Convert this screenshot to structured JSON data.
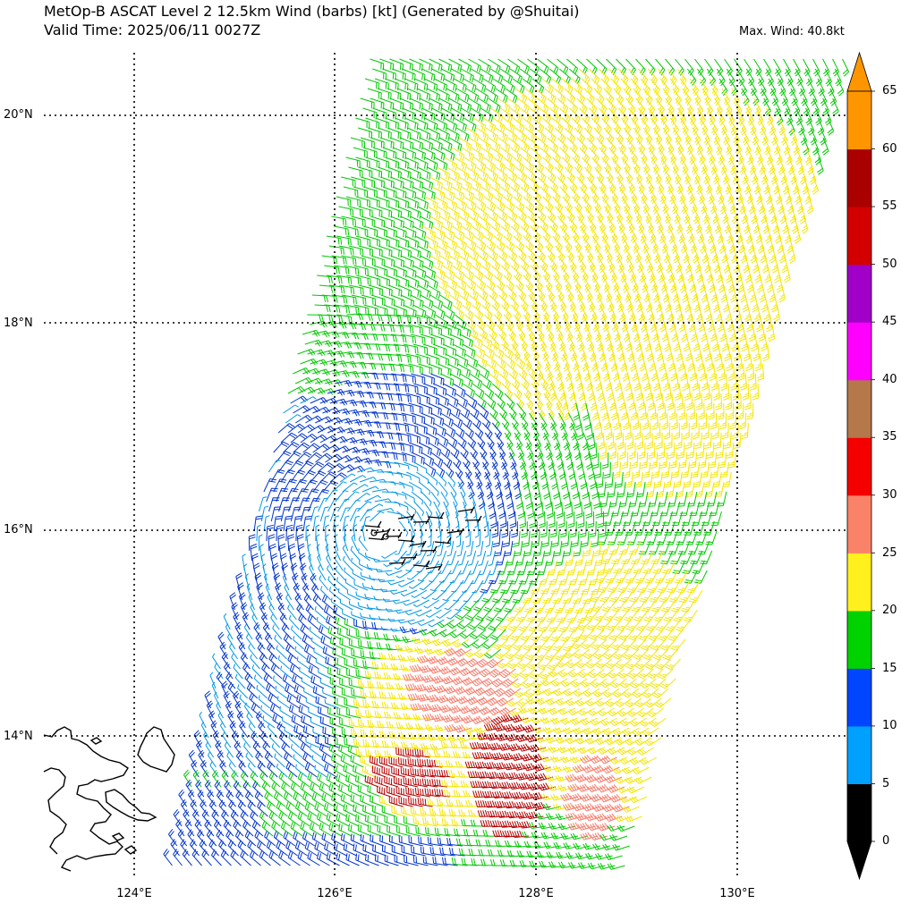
{
  "title": {
    "line1": "MetOp-B ASCAT Level 2 12.5km Wind (barbs) [kt] (Generated by @Shuitai)",
    "line2": "Valid Time: 2025/06/11 0027Z",
    "max_wind": "Max. Wind: 40.8kt"
  },
  "map": {
    "lat_labels": [
      "20°N",
      "18°N",
      "16°N",
      "14°N"
    ],
    "lon_labels": [
      "124°E",
      "126°E",
      "128°E",
      "130°E"
    ],
    "lat_range": [
      12.7,
      20.6
    ],
    "lon_range": [
      123.1,
      131.1
    ],
    "grid_style": "dotted"
  },
  "colorbar": {
    "levels": [
      "0",
      "5",
      "10",
      "15",
      "20",
      "25",
      "30",
      "35",
      "40",
      "45",
      "50",
      "55",
      "60",
      "65"
    ],
    "colors": [
      "#000000",
      "#00a0ff",
      "#0046ff",
      "#00d200",
      "#fff01e",
      "#fa8268",
      "#f50000",
      "#b4784b",
      "#ff00ff",
      "#a000c8",
      "#d20000",
      "#aa0000",
      "#ff9600"
    ],
    "extend": "both"
  },
  "wind_colors": {
    "calm": "#000000",
    "light": "#0096e6",
    "moderate": "#0033cc",
    "fresh": "#00c800",
    "strong": "#f5e600",
    "near_gale": "#fa7c6c",
    "gale": "#b40000"
  }
}
